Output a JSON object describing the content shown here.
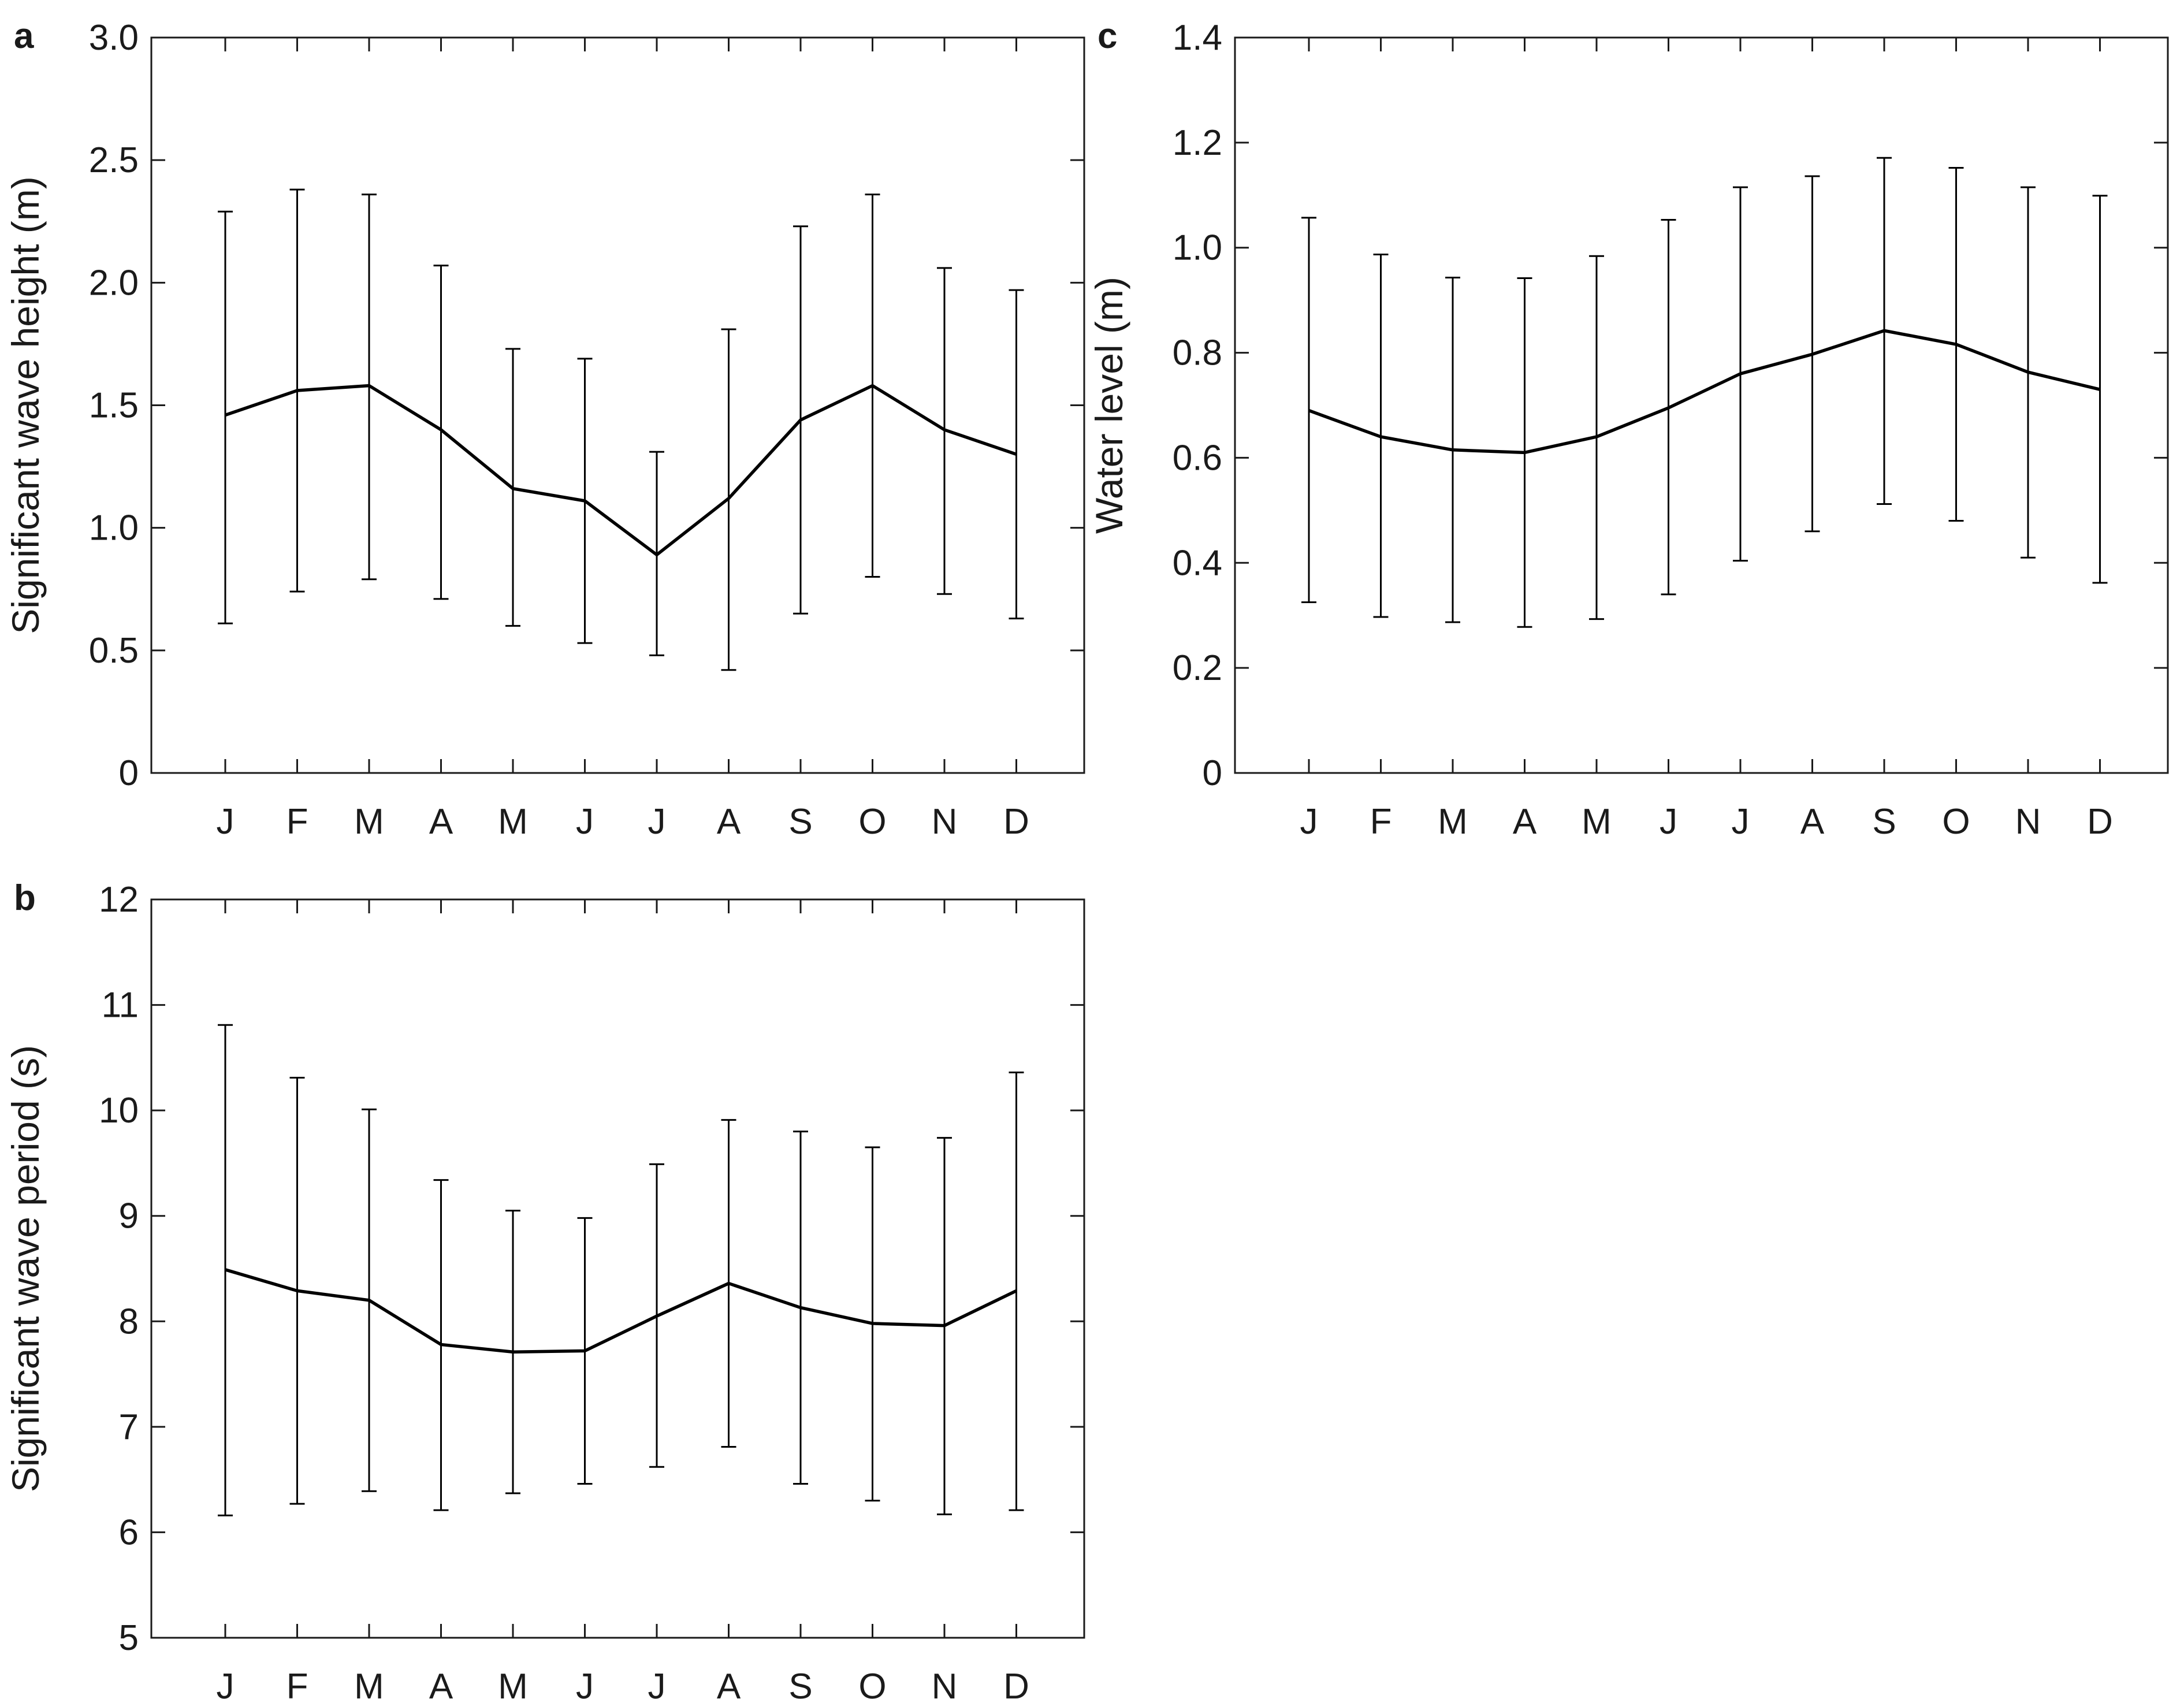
{
  "chart_data": [
    {
      "type": "line",
      "panel": "a",
      "ylabel": "Significant wave height (m)",
      "categories": [
        "J",
        "F",
        "M",
        "A",
        "M",
        "J",
        "J",
        "A",
        "S",
        "O",
        "N",
        "D"
      ],
      "ylim": [
        0,
        3.0
      ],
      "yticks": [
        "0",
        "0.5",
        "1.0",
        "1.5",
        "2.0",
        "2.5",
        "3.0"
      ],
      "ytick_values": [
        0,
        0.5,
        1.0,
        1.5,
        2.0,
        2.5,
        3.0
      ],
      "series": [
        {
          "values": [
            1.46,
            1.56,
            1.58,
            1.4,
            1.16,
            1.11,
            0.89,
            1.12,
            1.44,
            1.58,
            1.4,
            1.3
          ],
          "error_low": [
            0.61,
            0.74,
            0.79,
            0.71,
            0.6,
            0.53,
            0.48,
            0.42,
            0.65,
            0.8,
            0.73,
            0.63
          ],
          "error_high": [
            2.29,
            2.38,
            2.36,
            2.07,
            1.73,
            1.69,
            1.31,
            1.81,
            2.23,
            2.36,
            2.06,
            1.97
          ]
        }
      ]
    },
    {
      "type": "line",
      "panel": "b",
      "ylabel": "Significant wave period (s)",
      "categories": [
        "J",
        "F",
        "M",
        "A",
        "M",
        "J",
        "J",
        "A",
        "S",
        "O",
        "N",
        "D"
      ],
      "ylim": [
        5,
        12
      ],
      "yticks": [
        "5",
        "6",
        "7",
        "8",
        "9",
        "10",
        "11",
        "12"
      ],
      "ytick_values": [
        5,
        6,
        7,
        8,
        9,
        10,
        11,
        12
      ],
      "series": [
        {
          "values": [
            8.49,
            8.29,
            8.2,
            7.78,
            7.71,
            7.72,
            8.05,
            8.36,
            8.13,
            7.98,
            7.96,
            8.29
          ],
          "error_low": [
            6.16,
            6.27,
            6.39,
            6.21,
            6.37,
            6.46,
            6.62,
            6.81,
            6.46,
            6.3,
            6.17,
            6.21
          ],
          "error_high": [
            10.81,
            10.31,
            10.01,
            9.34,
            9.05,
            8.98,
            9.49,
            9.91,
            9.8,
            9.65,
            9.74,
            10.36
          ]
        }
      ]
    },
    {
      "type": "line",
      "panel": "c",
      "ylabel": "Water level (m)",
      "categories": [
        "J",
        "F",
        "M",
        "A",
        "M",
        "J",
        "J",
        "A",
        "S",
        "O",
        "N",
        "D"
      ],
      "ylim": [
        0,
        1.4
      ],
      "yticks": [
        "0",
        "0.2",
        "0.4",
        "0.6",
        "0.8",
        "1.0",
        "1.2",
        "1.4"
      ],
      "ytick_values": [
        0,
        0.2,
        0.4,
        0.6,
        0.8,
        1.0,
        1.2,
        1.4
      ],
      "series": [
        {
          "values": [
            0.69,
            0.64,
            0.615,
            0.61,
            0.64,
            0.695,
            0.76,
            0.797,
            0.842,
            0.816,
            0.763,
            0.73
          ],
          "error_low": [
            0.325,
            0.297,
            0.287,
            0.278,
            0.293,
            0.34,
            0.404,
            0.46,
            0.512,
            0.48,
            0.41,
            0.362
          ],
          "error_high": [
            1.057,
            0.987,
            0.943,
            0.942,
            0.984,
            1.053,
            1.115,
            1.136,
            1.171,
            1.152,
            1.115,
            1.099
          ]
        }
      ]
    }
  ]
}
